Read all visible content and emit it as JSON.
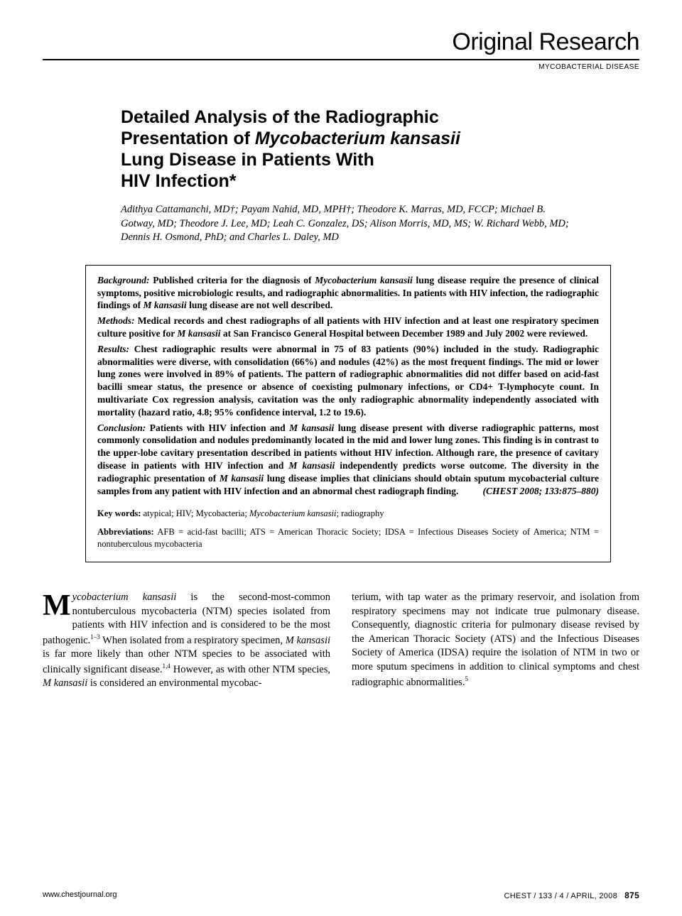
{
  "header": {
    "category": "Original Research",
    "subcategory": "MYCOBACTERIAL DISEASE"
  },
  "title": {
    "line1": "Detailed Analysis of the Radiographic",
    "line2_pre": "Presentation of ",
    "line2_ital": "Mycobacterium kansasii",
    "line3": "Lung Disease in Patients With",
    "line4": "HIV Infection*"
  },
  "authors": "Adithya Cattamanchi, MD†; Payam Nahid, MD, MPH†; Theodore K. Marras, MD, FCCP; Michael B. Gotway, MD; Theodore J. Lee, MD; Leah C. Gonzalez, DS; Alison Morris, MD, MS; W. Richard Webb, MD; Dennis H. Osmond, PhD; and Charles L. Daley, MD",
  "abstract": {
    "background_label": "Background:",
    "background_a": " Published criteria for the diagnosis of ",
    "background_ital1": "Mycobacterium kansasii",
    "background_b": " lung disease require the presence of clinical symptoms, positive microbiologic results, and radiographic abnormalities. In patients with HIV infection, the radiographic findings of ",
    "background_ital2": "M kansasii",
    "background_c": " lung disease are not well described.",
    "methods_label": "Methods:",
    "methods_a": " Medical records and chest radiographs of all patients with HIV infection and at least one respiratory specimen culture positive for ",
    "methods_ital": "M kansasii",
    "methods_b": " at San Francisco General Hospital between December 1989 and July 2002 were reviewed.",
    "results_label": "Results:",
    "results": " Chest radiographic results were abnormal in 75 of 83 patients (90%) included in the study. Radiographic abnormalities were diverse, with consolidation (66%) and nodules (42%) as the most frequent findings. The mid or lower lung zones were involved in 89% of patients. The pattern of radiographic abnormalities did not differ based on acid-fast bacilli smear status, the presence or absence of coexisting pulmonary infections, or CD4+ T-lymphocyte count. In multivariate Cox regression analysis, cavitation was the only radiographic abnormality independently associated with mortality (hazard ratio, 4.8; 95% confidence interval, 1.2 to 19.6).",
    "conclusion_label": "Conclusion:",
    "conclusion_a": " Patients with HIV infection and ",
    "conclusion_ital1": "M kansasii",
    "conclusion_b": " lung disease present with diverse radiographic patterns, most commonly consolidation and nodules predominantly located in the mid and lower lung zones. This finding is in contrast to the upper-lobe cavitary presentation described in patients without HIV infection. Although rare, the presence of cavitary disease in patients with HIV infection and ",
    "conclusion_ital2": "M kansasii",
    "conclusion_c": " independently predicts worse outcome. The diversity in the radiographic presentation of ",
    "conclusion_ital3": "M kansasii",
    "conclusion_d": " lung disease implies that clinicians should obtain sputum mycobacterial culture samples from any patient with HIV infection and an abnormal chest radiograph finding.",
    "citation": "(CHEST 2008; 133:875–880)",
    "keywords_label": "Key words:",
    "keywords_a": " atypical; HIV; Mycobacteria; ",
    "keywords_ital": "Mycobacterium kansasii",
    "keywords_b": "; radiography",
    "abbrev_label": "Abbreviations:",
    "abbrev": " AFB = acid-fast bacilli; ATS = American Thoracic Society; IDSA = Infectious Diseases Society of America; NTM = nontuberculous mycobacteria"
  },
  "body": {
    "col1_dropcap": "M",
    "col1_ital1": "ycobacterium kansasii",
    "col1_a": " is the second-most-common nontuberculous mycobacteria (NTM) species isolated from patients with HIV infection and is considered to be the most pathogenic.",
    "col1_sup1": "1–3",
    "col1_b": " When isolated from a respiratory specimen, ",
    "col1_ital2": "M kansasii",
    "col1_c": " is far more likely than other NTM species to be associated with clinically significant disease.",
    "col1_sup2": "1,4",
    "col1_d": " However, as with other NTM species, ",
    "col1_ital3": "M kansasii",
    "col1_e": " is considered an environmental mycobac-",
    "col2_a": "terium, with tap water as the primary reservoir, and isolation from respiratory specimens may not indicate true pulmonary disease. Consequently, diagnostic criteria for pulmonary disease revised by the American Thoracic Society (ATS) and the Infectious Diseases Society of America (IDSA) require the isolation of NTM in two or more sputum specimens in addition to clinical symptoms and chest radiographic abnormalities.",
    "col2_sup": "5"
  },
  "footer": {
    "left": "www.chestjournal.org",
    "right": "CHEST / 133 / 4 / APRIL, 2008",
    "page": "875"
  }
}
